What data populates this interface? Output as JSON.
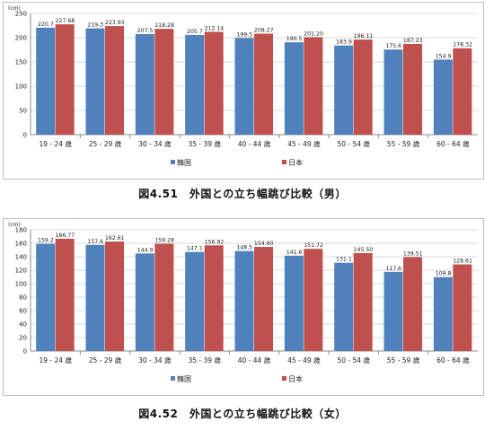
{
  "chart_data": [
    {
      "type": "bar",
      "unit_label": "(cm)",
      "categories": [
        "19 - 24 歳",
        "25 - 29 歳",
        "30 - 34 歳",
        "35 - 39 歳",
        "40 - 44 歳",
        "45 - 49 歳",
        "50 - 54 歳",
        "55 - 59 歳",
        "60 - 64 歳"
      ],
      "series": [
        {
          "name": "韓国",
          "color": "#4f81bd",
          "values": [
            220.7,
            219.3,
            207.5,
            205.7,
            199.5,
            190.5,
            183.9,
            175.6,
            154.9
          ],
          "labels": [
            "220.7",
            "219.3",
            "207.5",
            "205.7",
            "199.5",
            "190.5",
            "183.9",
            "175.6",
            "154.9"
          ]
        },
        {
          "name": "日本",
          "color": "#c0504d",
          "values": [
            227.68,
            223.93,
            218.28,
            212.14,
            208.27,
            201.2,
            196.11,
            187.23,
            178.32
          ],
          "labels": [
            "227.68",
            "223.93",
            "218.28",
            "212.14",
            "208.27",
            "201.20",
            "196.11",
            "187.23",
            "178.32"
          ]
        }
      ],
      "ylim": [
        0,
        250
      ],
      "yticks": [
        0,
        50,
        100,
        150,
        200,
        250
      ],
      "grid": true,
      "legend": "bottom",
      "caption": "図4.51　外国との立ち幅跳び比較（男）"
    },
    {
      "type": "bar",
      "unit_label": "(cm)",
      "categories": [
        "19 - 24 歳",
        "25 - 29 歳",
        "30 - 34 歳",
        "35 - 39 歳",
        "40 - 44 歳",
        "45 - 49 歳",
        "50 - 54 歳",
        "55 - 59 歳",
        "60 - 64 歳"
      ],
      "series": [
        {
          "name": "韓国",
          "color": "#4f81bd",
          "values": [
            159.2,
            157.6,
            144.9,
            147.1,
            148.5,
            141.6,
            131.1,
            117.6,
            109.8
          ],
          "labels": [
            "159.2",
            "157.6",
            "144.9",
            "147.1",
            "148.5",
            "141.6",
            "131.1",
            "117.6",
            "109.8"
          ]
        },
        {
          "name": "日本",
          "color": "#c0504d",
          "values": [
            166.77,
            162.61,
            159.28,
            156.92,
            154.6,
            151.72,
            145.5,
            139.51,
            128.61
          ],
          "labels": [
            "166.77",
            "162.61",
            "159.28",
            "156.92",
            "154.60",
            "151.72",
            "145.50",
            "139.51",
            "128.61"
          ]
        }
      ],
      "ylim": [
        0,
        180
      ],
      "yticks": [
        0,
        20,
        40,
        60,
        80,
        100,
        120,
        140,
        160,
        180
      ],
      "grid": true,
      "legend": "bottom",
      "caption": "図4.52　外国との立ち幅跳び比較（女）"
    }
  ]
}
